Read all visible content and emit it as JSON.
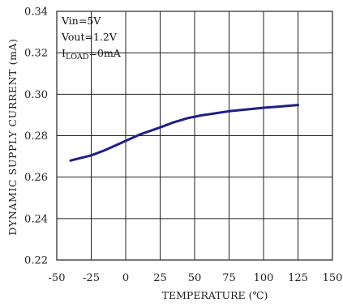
{
  "chart_data": {
    "type": "line",
    "title": "",
    "xlabel": "TEMPERATURE (℃)",
    "ylabel": "DYNAMIC SUPPLY CURRENT (mA)",
    "xlim": [
      -50,
      150
    ],
    "ylim": [
      0.22,
      0.34
    ],
    "x_ticks": [
      "-50",
      "-25",
      "0",
      "25",
      "50",
      "75",
      "100",
      "125",
      "150"
    ],
    "y_ticks": [
      "0.22",
      "0.24",
      "0.26",
      "0.28",
      "0.30",
      "0.32",
      "0.34"
    ],
    "grid": true,
    "series": [
      {
        "x": [
          -40,
          -25,
          -15,
          -5,
          0,
          10,
          25,
          35,
          45,
          55,
          65,
          75,
          90,
          100,
          110,
          125
        ],
        "y": [
          0.268,
          0.2705,
          0.273,
          0.276,
          0.2775,
          0.2805,
          0.284,
          0.2865,
          0.2885,
          0.2898,
          0.2908,
          0.2918,
          0.2928,
          0.2935,
          0.294,
          0.2948
        ]
      }
    ],
    "annotations": [
      {
        "text": "Vin=5V"
      },
      {
        "text": "Vout=1.2V"
      },
      {
        "text": "I",
        "sub": "LOAD",
        "suffix": "=0mA"
      }
    ],
    "colors": {
      "line": "#1f1f86",
      "grid": "#222222"
    }
  }
}
